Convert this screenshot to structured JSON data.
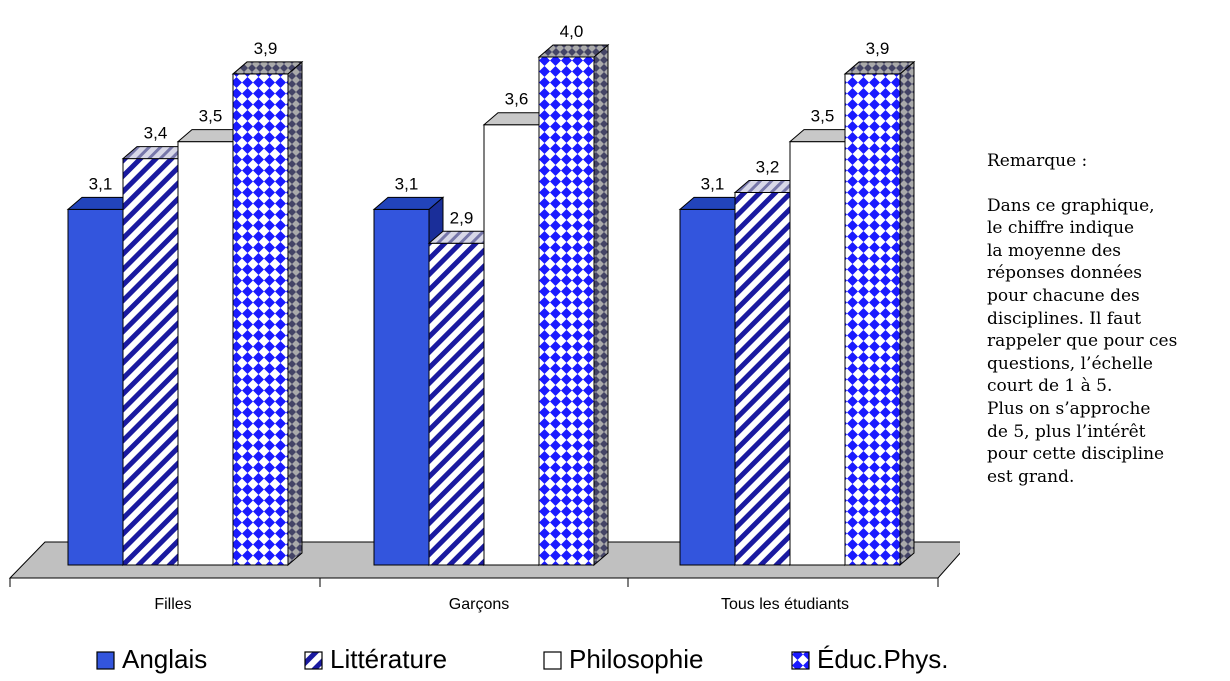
{
  "chart_data": {
    "type": "bar",
    "categories": [
      "Filles",
      "Garçons",
      "Tous les étudiants"
    ],
    "series": [
      {
        "name": "Anglais",
        "values": [
          3.1,
          3.1,
          3.1
        ],
        "color": "#3355dd"
      },
      {
        "name": "Littérature",
        "values": [
          3.4,
          2.9,
          3.2
        ],
        "color": "#1a1aa0"
      },
      {
        "name": "Philosophie",
        "values": [
          3.5,
          3.6,
          3.5
        ],
        "color": "#ffffff"
      },
      {
        "name": "Éduc.Phys.",
        "values": [
          3.9,
          4.0,
          3.9
        ],
        "color": "#1a1aff"
      }
    ],
    "value_labels": [
      [
        "3,1",
        "3,1",
        "3,1"
      ],
      [
        "3,4",
        "2,9",
        "3,2"
      ],
      [
        "3,5",
        "3,6",
        "3,5"
      ],
      [
        "3,9",
        "4,0",
        "3,9"
      ]
    ],
    "ylim": [
      1,
      5
    ],
    "three_d": true,
    "grid": false,
    "legend_position": "bottom",
    "floor_color": "#c0c0c0"
  },
  "remark": {
    "title": "Remarque :",
    "body": "Dans ce graphique,\nle chiffre indique\nla moyenne des\nréponses données\npour chacune des\ndisciplines. Il faut\nrappeler que pour ces\nquestions, l’échelle\ncourt de 1 à 5.\nPlus on s’approche\nde 5, plus l’intérêt\npour cette discipline\nest grand."
  }
}
